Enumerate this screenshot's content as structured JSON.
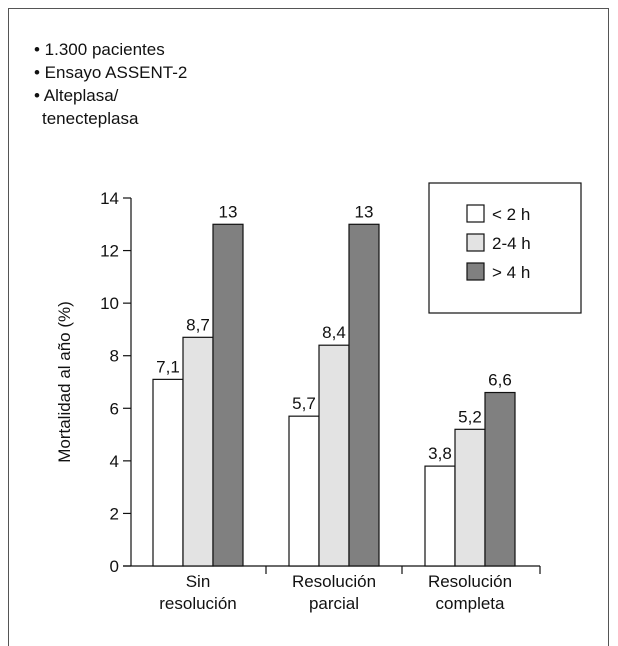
{
  "notes": [
    "• 1.300 pacientes",
    "• Ensayo ASSENT-2",
    "• Alteplasa/",
    "tenecteplasa"
  ],
  "chart_data": {
    "type": "bar",
    "title": "",
    "xlabel": "",
    "ylabel": "Mortalidad al año (%)",
    "ylim": [
      0,
      14
    ],
    "yticks": [
      0,
      2,
      4,
      6,
      8,
      10,
      12,
      14
    ],
    "grid": false,
    "legend_position": "top-right",
    "categories": [
      {
        "line1": "Sin",
        "line2": "resolución"
      },
      {
        "line1": "Resolución",
        "line2": "parcial"
      },
      {
        "line1": "Resolución",
        "line2": "completa"
      }
    ],
    "series": [
      {
        "name": "< 2 h",
        "color": "#ffffff",
        "values": [
          7.1,
          5.7,
          3.8
        ],
        "labels": [
          "7,1",
          "5,7",
          "3,8"
        ]
      },
      {
        "name": "2-4 h",
        "color": "#e3e3e3",
        "values": [
          8.7,
          8.4,
          5.2
        ],
        "labels": [
          "8,7",
          "8,4",
          "5,2"
        ]
      },
      {
        "name": "> 4 h",
        "color": "#808080",
        "values": [
          13,
          13,
          6.6
        ],
        "labels": [
          "13",
          "13",
          "6,6"
        ]
      }
    ]
  }
}
